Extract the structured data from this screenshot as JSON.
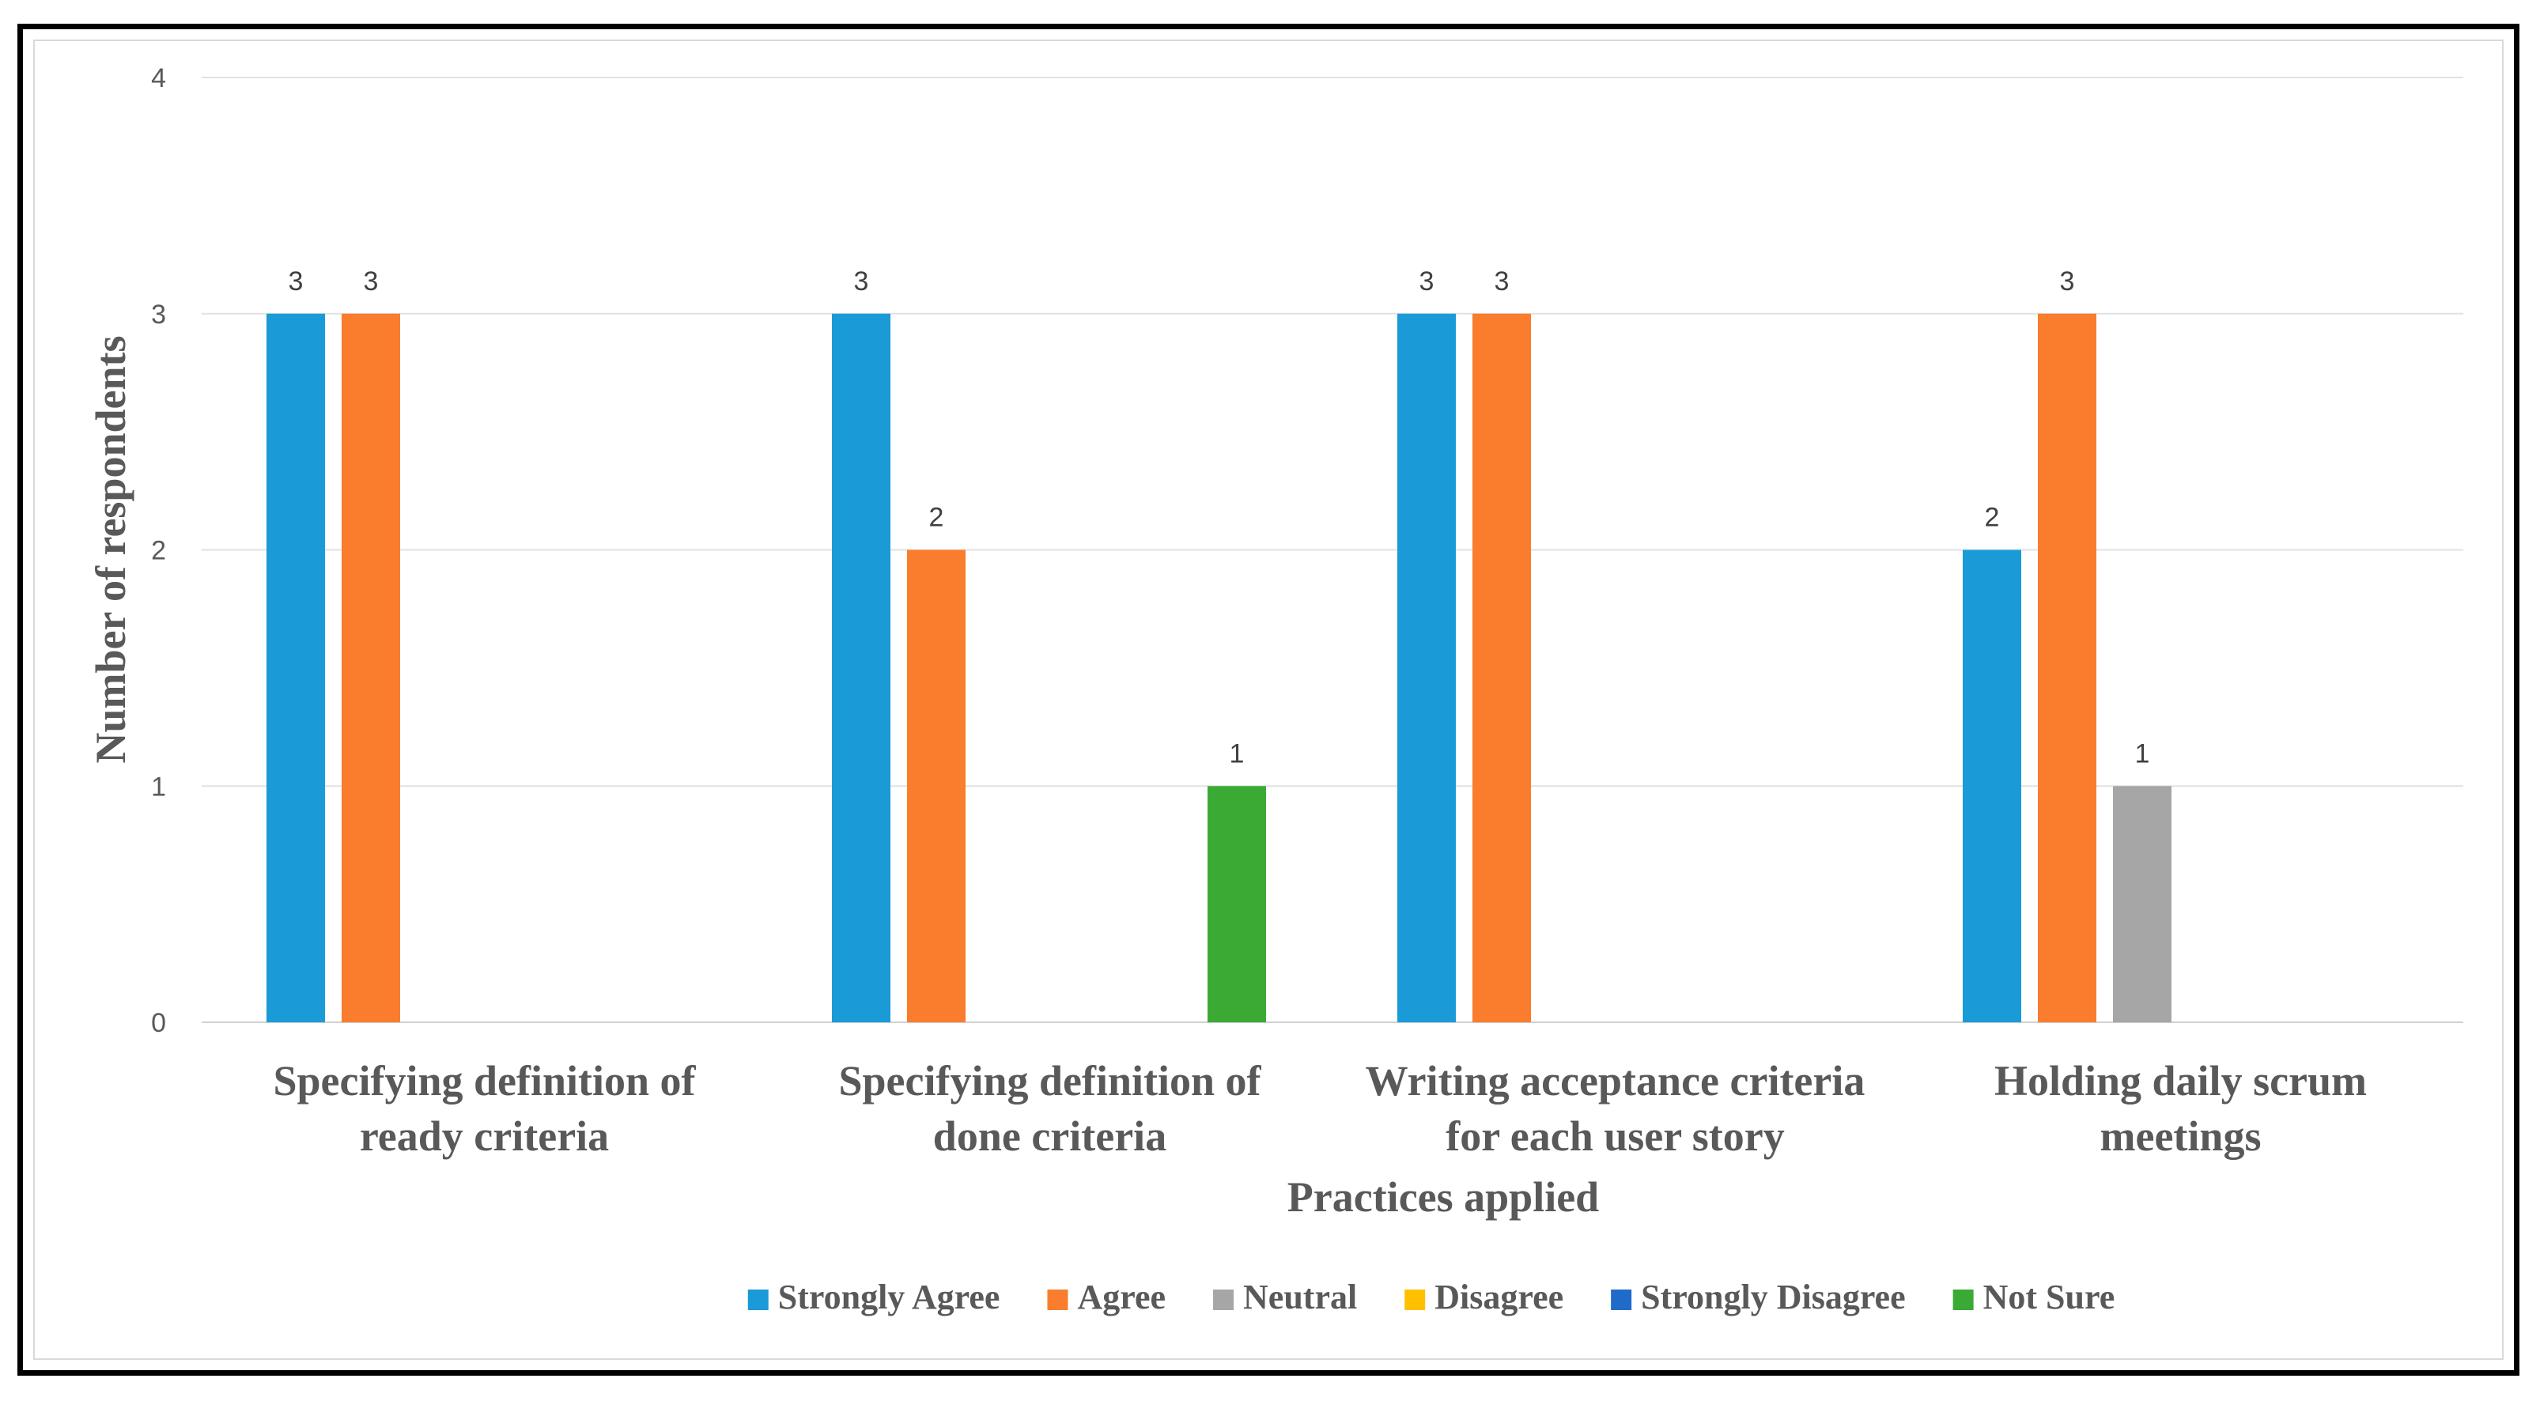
{
  "chart_data": {
    "type": "bar",
    "categories": [
      [
        "Specifying definition of",
        "ready criteria"
      ],
      [
        "Specifying definition of",
        "done criteria"
      ],
      [
        "Writing acceptance criteria",
        "for each user story"
      ],
      [
        "Holding daily scrum",
        "meetings"
      ]
    ],
    "series": [
      {
        "name": "Strongly Agree",
        "color": "#1a9bd7",
        "values": [
          3,
          3,
          3,
          2
        ]
      },
      {
        "name": "Agree",
        "color": "#f97d2c",
        "values": [
          3,
          2,
          3,
          3
        ]
      },
      {
        "name": "Neutral",
        "color": "#a6a6a6",
        "values": [
          0,
          0,
          0,
          1
        ]
      },
      {
        "name": "Disagree",
        "color": "#ffc000",
        "values": [
          0,
          0,
          0,
          0
        ]
      },
      {
        "name": "Strongly Disagree",
        "color": "#1f6bc7",
        "values": [
          0,
          0,
          0,
          0
        ]
      },
      {
        "name": "Not Sure",
        "color": "#3aaa35",
        "values": [
          0,
          1,
          0,
          0
        ]
      }
    ],
    "xlabel": "Practices applied",
    "ylabel": "Number of respondents",
    "ylim": [
      0,
      4
    ],
    "yticks": [
      "0",
      "1",
      "2",
      "3",
      "4"
    ],
    "grid": true,
    "legend_position": "bottom"
  }
}
